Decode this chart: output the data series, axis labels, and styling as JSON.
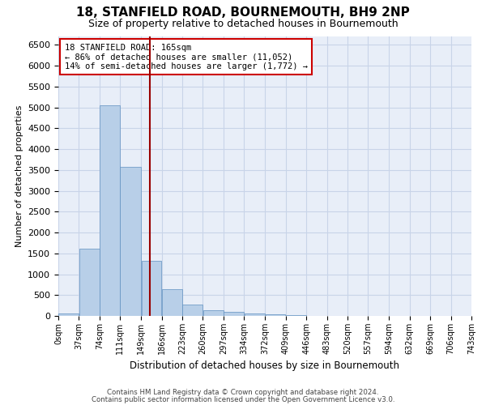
{
  "title": "18, STANFIELD ROAD, BOURNEMOUTH, BH9 2NP",
  "subtitle": "Size of property relative to detached houses in Bournemouth",
  "xlabel": "Distribution of detached houses by size in Bournemouth",
  "ylabel": "Number of detached properties",
  "footer1": "Contains HM Land Registry data © Crown copyright and database right 2024.",
  "footer2": "Contains public sector information licensed under the Open Government Licence v3.0.",
  "annotation_title": "18 STANFIELD ROAD: 165sqm",
  "annotation_line1": "← 86% of detached houses are smaller (11,052)",
  "annotation_line2": "14% of semi-detached houses are larger (1,772) →",
  "property_size": 165,
  "bin_edges": [
    0,
    37,
    74,
    111,
    149,
    186,
    223,
    260,
    297,
    334,
    372,
    409,
    446,
    483,
    520,
    557,
    594,
    632,
    669,
    706,
    743
  ],
  "bin_labels": [
    "0sqm",
    "37sqm",
    "74sqm",
    "111sqm",
    "149sqm",
    "186sqm",
    "223sqm",
    "260sqm",
    "297sqm",
    "334sqm",
    "372sqm",
    "409sqm",
    "446sqm",
    "483sqm",
    "520sqm",
    "557sqm",
    "594sqm",
    "632sqm",
    "669sqm",
    "706sqm",
    "743sqm"
  ],
  "bar_heights": [
    55,
    1620,
    5050,
    3570,
    1330,
    640,
    280,
    130,
    90,
    60,
    30,
    10,
    5,
    3,
    2,
    1,
    1,
    0,
    0,
    0
  ],
  "bar_color": "#b8cfe8",
  "bar_edge_color": "#6090c0",
  "vline_color": "#990000",
  "ylim": [
    0,
    6700
  ],
  "yticks": [
    0,
    500,
    1000,
    1500,
    2000,
    2500,
    3000,
    3500,
    4000,
    4500,
    5000,
    5500,
    6000,
    6500
  ],
  "grid_color": "#c8d4e8",
  "plot_bg_color": "#e8eef8",
  "fig_bg_color": "#ffffff",
  "annotation_box_color": "#ffffff",
  "annotation_box_edge": "#cc0000",
  "title_fontsize": 11,
  "subtitle_fontsize": 9
}
